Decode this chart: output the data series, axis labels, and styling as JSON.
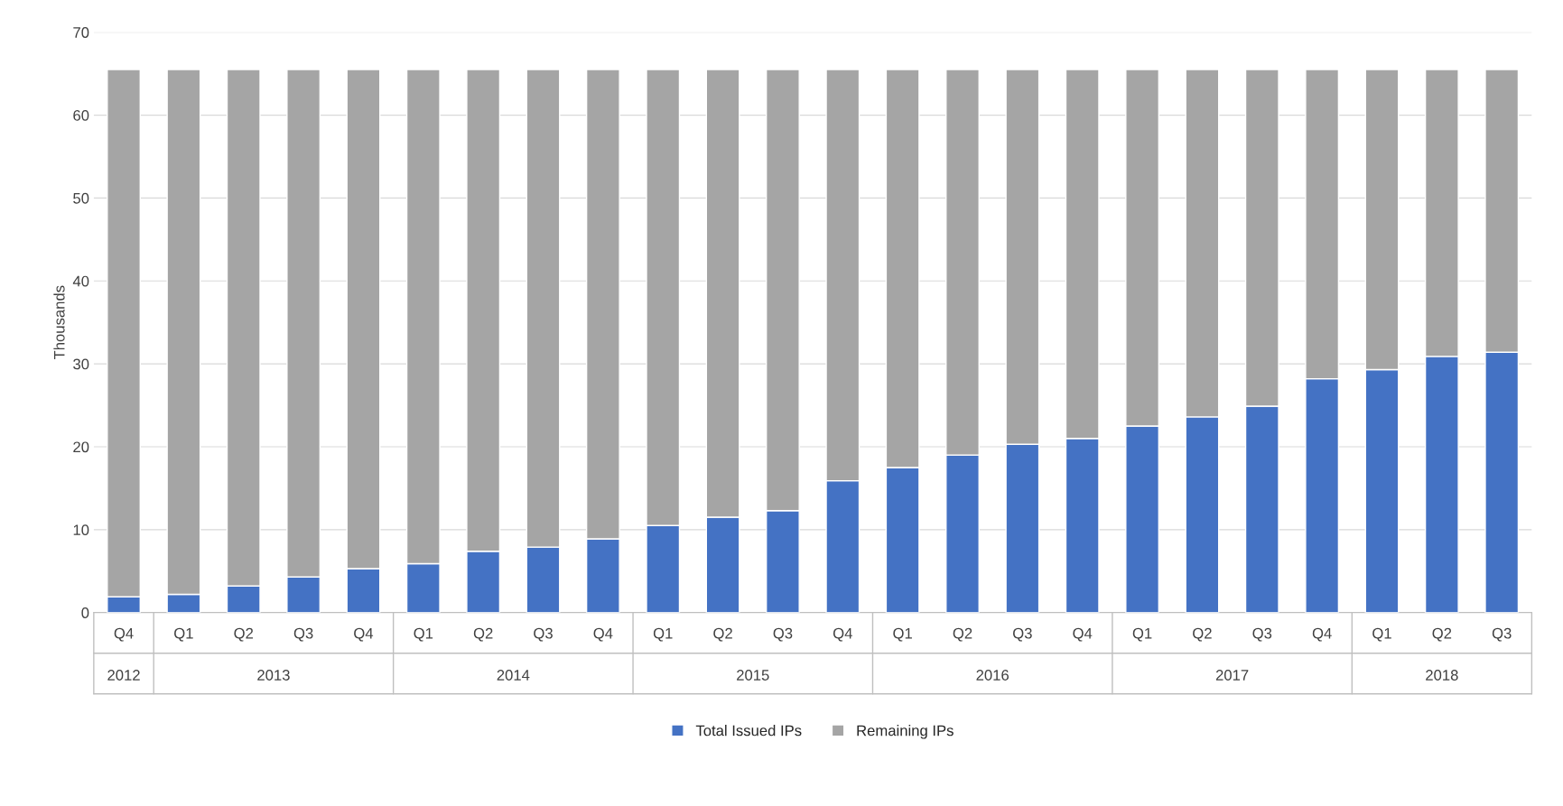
{
  "chart_data": {
    "type": "bar",
    "stacked": true,
    "ylabel": "Thousands",
    "categories": [
      "Q4",
      "Q1",
      "Q2",
      "Q3",
      "Q4",
      "Q1",
      "Q2",
      "Q3",
      "Q4",
      "Q1",
      "Q2",
      "Q3",
      "Q4",
      "Q1",
      "Q2",
      "Q3",
      "Q4",
      "Q1",
      "Q2",
      "Q3",
      "Q4",
      "Q1",
      "Q2",
      "Q3"
    ],
    "series": [
      {
        "name": "Total Issued IPs",
        "color": "#4472c4",
        "values": [
          1.9,
          2.2,
          3.2,
          4.3,
          5.3,
          5.9,
          7.4,
          7.9,
          8.9,
          10.5,
          11.5,
          12.3,
          15.9,
          17.5,
          19.0,
          20.3,
          21.0,
          22.5,
          23.6,
          24.9,
          28.2,
          29.3,
          30.9,
          31.4
        ]
      },
      {
        "name": "Remaining IPs",
        "color": "#a5a5a5",
        "values": [
          63.6,
          63.3,
          62.3,
          61.2,
          60.2,
          59.6,
          58.1,
          57.6,
          56.6,
          55.0,
          54.0,
          53.2,
          49.6,
          48.0,
          46.5,
          45.2,
          44.5,
          43.0,
          41.9,
          40.6,
          37.3,
          36.2,
          34.6,
          34.1
        ]
      }
    ],
    "annotations": [
      "2012",
      "2013",
      "2014",
      "2015",
      "2016",
      "2017",
      "2018"
    ],
    "ylim": [
      0,
      70
    ],
    "yticks": [
      0,
      10,
      20,
      30,
      40,
      50,
      60,
      70
    ],
    "grid": "y",
    "legend": "bottom"
  }
}
